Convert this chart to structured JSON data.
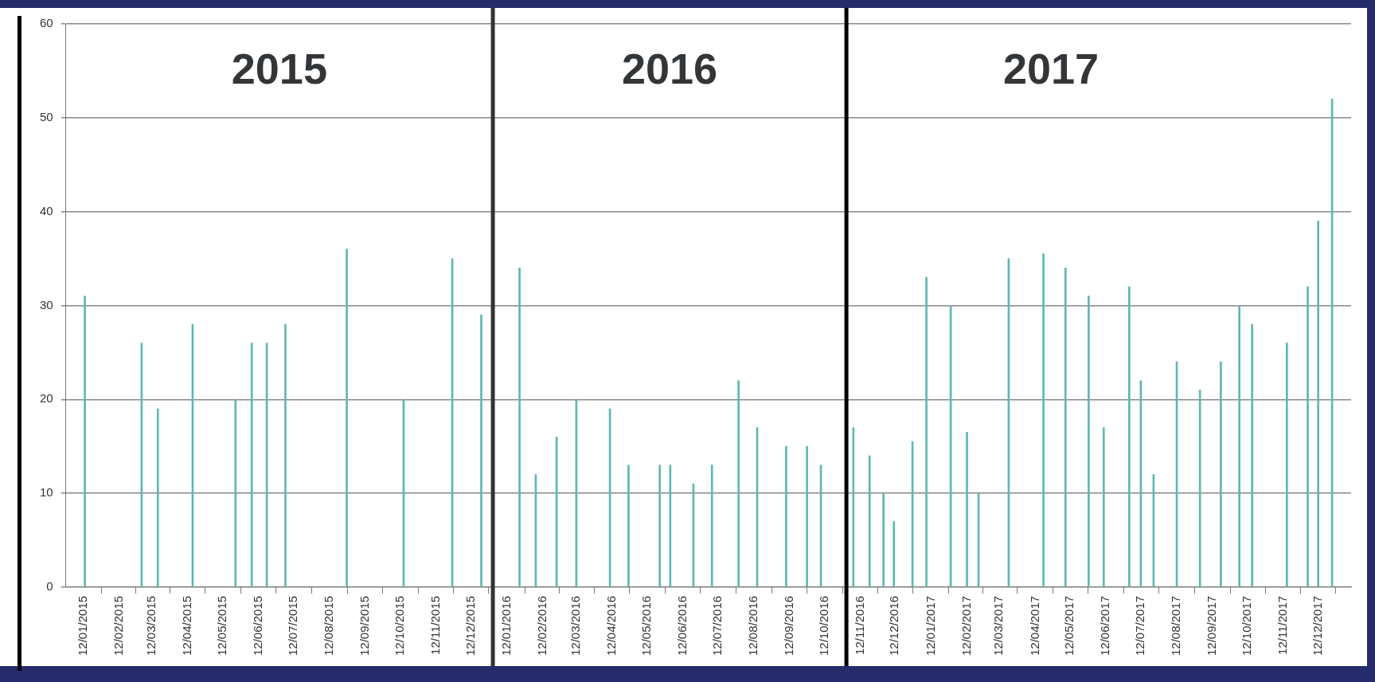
{
  "chart_data": {
    "type": "bar",
    "x": [
      "2015-01-13",
      "2015-03-03",
      "2015-03-17",
      "2015-04-16",
      "2015-05-23",
      "2015-06-06",
      "2015-06-19",
      "2015-07-05",
      "2015-08-27",
      "2015-10-15",
      "2015-11-26",
      "2015-12-21",
      "2016-01-23",
      "2016-02-06",
      "2016-02-24",
      "2016-03-12",
      "2016-04-10",
      "2016-04-26",
      "2016-05-23",
      "2016-06-01",
      "2016-06-21",
      "2016-07-07",
      "2016-07-30",
      "2016-08-15",
      "2016-09-09",
      "2016-09-27",
      "2016-10-09",
      "2016-11-06",
      "2016-11-20",
      "2016-12-02",
      "2016-12-11",
      "2016-12-27",
      "2017-01-08",
      "2017-01-29",
      "2017-02-12",
      "2017-02-22",
      "2017-03-20",
      "2017-04-19",
      "2017-05-08",
      "2017-05-28",
      "2017-06-10",
      "2017-07-02",
      "2017-07-12",
      "2017-07-23",
      "2017-08-12",
      "2017-09-01",
      "2017-09-19",
      "2017-10-05",
      "2017-10-16",
      "2017-11-15",
      "2017-12-03",
      "2017-12-12",
      "2017-12-24"
    ],
    "values": [
      31,
      26,
      19,
      28,
      20,
      26,
      26,
      28,
      36,
      20,
      35,
      29,
      34,
      12,
      16,
      20,
      19,
      13,
      13,
      13,
      11,
      13,
      22,
      17,
      15,
      15,
      13,
      17,
      14,
      10,
      7,
      15.5,
      33,
      30,
      16.5,
      10,
      35,
      35.5,
      34,
      31,
      17,
      32,
      22,
      12,
      24,
      21,
      24,
      30,
      28,
      26,
      32,
      39,
      52
    ],
    "color": "#5fb8b0",
    "xlim": [
      "2015-01-12",
      "2017-12-25"
    ],
    "xticks": [
      {
        "value": "2015-01-12",
        "label": "12/01/2015"
      },
      {
        "value": "2015-02-12",
        "label": "12/02/2015"
      },
      {
        "value": "2015-03-12",
        "label": "12/03/2015"
      },
      {
        "value": "2015-04-12",
        "label": "12/04/2015"
      },
      {
        "value": "2015-05-12",
        "label": "12/05/2015"
      },
      {
        "value": "2015-06-12",
        "label": "12/06/2015"
      },
      {
        "value": "2015-07-12",
        "label": "12/07/2015"
      },
      {
        "value": "2015-08-12",
        "label": "12/08/2015"
      },
      {
        "value": "2015-09-12",
        "label": "12/09/2015"
      },
      {
        "value": "2015-10-12",
        "label": "12/10/2015"
      },
      {
        "value": "2015-11-12",
        "label": "12/11/2015"
      },
      {
        "value": "2015-12-12",
        "label": "12/12/2015"
      },
      {
        "value": "2016-01-12",
        "label": "12/01/2016"
      },
      {
        "value": "2016-02-12",
        "label": "12/02/2016"
      },
      {
        "value": "2016-03-12",
        "label": "12/03/2016"
      },
      {
        "value": "2016-04-12",
        "label": "12/04/2016"
      },
      {
        "value": "2016-05-12",
        "label": "12/05/2016"
      },
      {
        "value": "2016-06-12",
        "label": "12/06/2016"
      },
      {
        "value": "2016-07-12",
        "label": "12/07/2016"
      },
      {
        "value": "2016-08-12",
        "label": "12/08/2016"
      },
      {
        "value": "2016-09-12",
        "label": "12/09/2016"
      },
      {
        "value": "2016-10-12",
        "label": "12/10/2016"
      },
      {
        "value": "2016-11-12",
        "label": "12/11/2016"
      },
      {
        "value": "2016-12-12",
        "label": "12/12/2016"
      },
      {
        "value": "2017-01-12",
        "label": "12/01/2017"
      },
      {
        "value": "2017-02-12",
        "label": "12/02/2017"
      },
      {
        "value": "2017-03-12",
        "label": "12/03/2017"
      },
      {
        "value": "2017-04-12",
        "label": "12/04/2017"
      },
      {
        "value": "2017-05-12",
        "label": "12/05/2017"
      },
      {
        "value": "2017-06-12",
        "label": "12/06/2017"
      },
      {
        "value": "2017-07-12",
        "label": "12/07/2017"
      },
      {
        "value": "2017-08-12",
        "label": "12/08/2017"
      },
      {
        "value": "2017-09-12",
        "label": "12/09/2017"
      },
      {
        "value": "2017-10-12",
        "label": "12/10/2017"
      },
      {
        "value": "2017-11-12",
        "label": "12/11/2017"
      },
      {
        "value": "2017-12-12",
        "label": "12/12/2017"
      }
    ],
    "ylim": [
      0,
      60
    ],
    "yticks": [
      0,
      10,
      20,
      30,
      40,
      50,
      60
    ],
    "grid": "y",
    "ref_lines": [
      {
        "axis": "x",
        "value": "2015-12-31",
        "color": "#333333"
      },
      {
        "axis": "x",
        "value": "2016-10-31",
        "color": "#000000"
      }
    ],
    "annotations": [
      "2015",
      "2016",
      "2017"
    ]
  }
}
